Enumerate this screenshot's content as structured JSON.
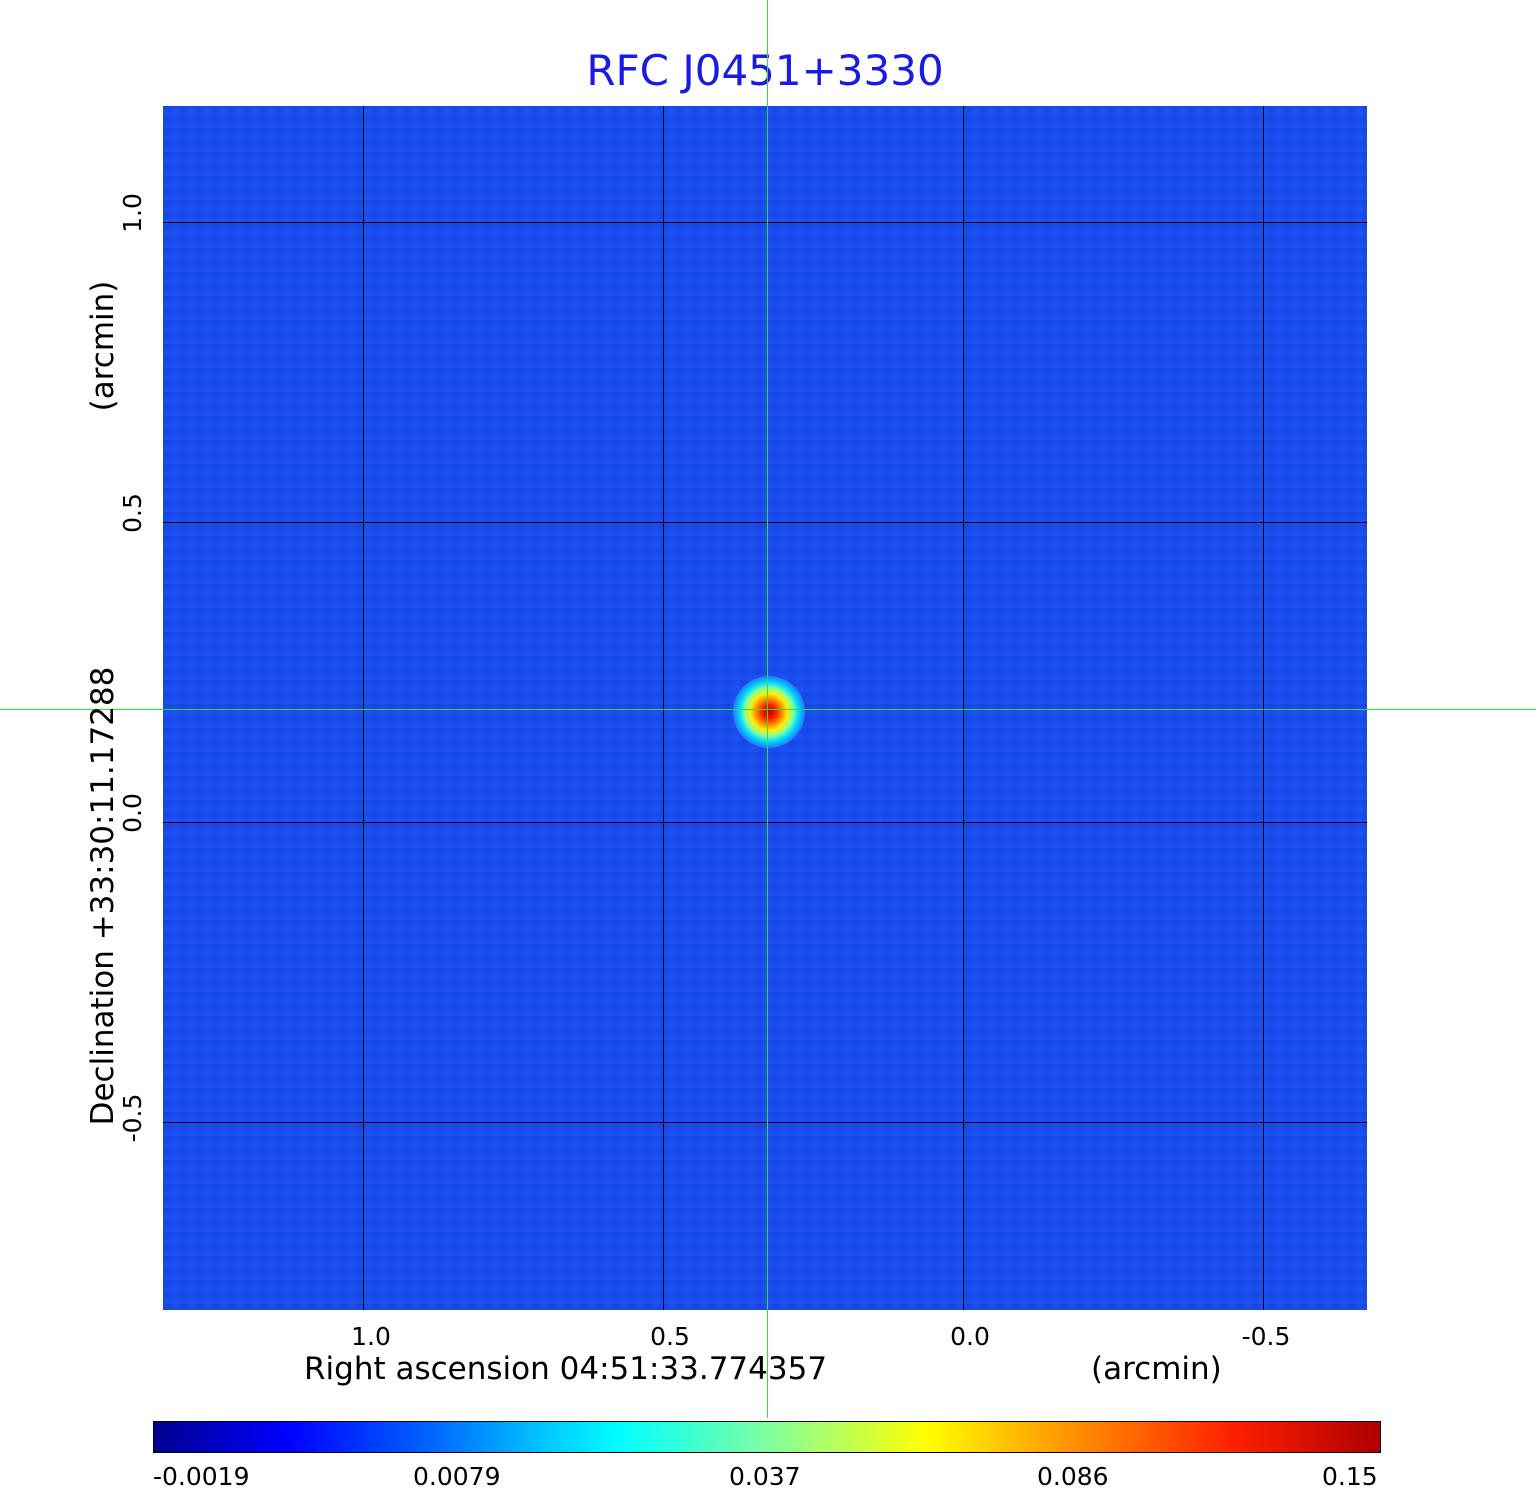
{
  "title": "RFC J0451+3330",
  "x_axis": {
    "label": "Right ascension  04:51:33.774357",
    "unit": "(arcmin)",
    "ticks": [
      "1.0",
      "0.5",
      "0.0",
      "-0.5"
    ]
  },
  "y_axis": {
    "label": "Declination  +33:30:11.17288",
    "unit": "(arcmin)",
    "ticks": [
      "1.0",
      "0.5",
      "0.0",
      "-0.5"
    ]
  },
  "colorbar": {
    "ticks": [
      "-0.0019",
      "0.0079",
      "0.037",
      "0.086",
      "0.15"
    ]
  },
  "colors": {
    "title": "#1a1ae6",
    "background_field": "#1a4ff2",
    "crosshair": "#33dd33",
    "grid": "#000000"
  }
}
